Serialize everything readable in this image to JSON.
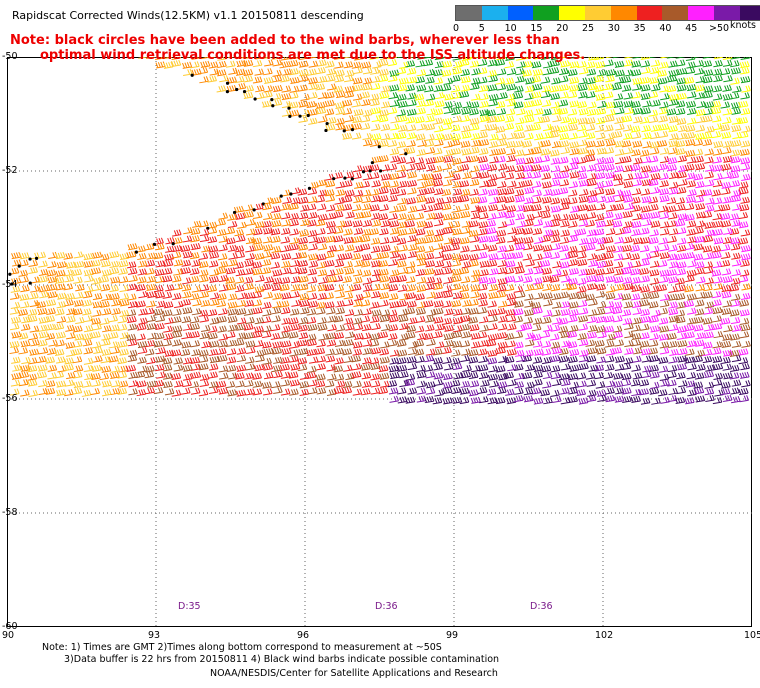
{
  "header": {
    "title": "Rapidscat Corrected Winds(12.5KM) v1.1 20150811 descending",
    "note_line1": "Note: black circles have been added to the wind barbs, wherever less than",
    "note_line2": "optimal wind retrieval conditions are met due to the ISS altitude changes."
  },
  "legend": {
    "labels": [
      "0",
      "5",
      "10",
      "15",
      "20",
      "25",
      "30",
      "35",
      "40",
      "45",
      ">50"
    ],
    "unit": "knots",
    "colors": [
      "#6e6e6e",
      "#1bb0ee",
      "#0060ff",
      "#10a020",
      "#ffff00",
      "#ffcc33",
      "#ff8800",
      "#ee2020",
      "#a85a2a",
      "#ff20ff",
      "#7a1aa8",
      "#3a0a60"
    ]
  },
  "map": {
    "lat_labels": [
      "-50",
      "-52",
      "-54",
      "-56",
      "-58",
      "-60"
    ],
    "lon_labels": [
      "90",
      "93",
      "96",
      "99",
      "102",
      "105"
    ],
    "time_labels": [
      "D:35",
      "D:36",
      "D:36"
    ]
  },
  "footer": {
    "line1": "Note: 1) Times are GMT 2)Times along bottom correspond to measurement at ~50S",
    "line2": "3)Data buffer is 22 hrs from 20150811 4) Black wind barbs indicate possible contamination",
    "line3": "NOAA/NESDIS/Center for Satellite Applications and Research"
  }
}
